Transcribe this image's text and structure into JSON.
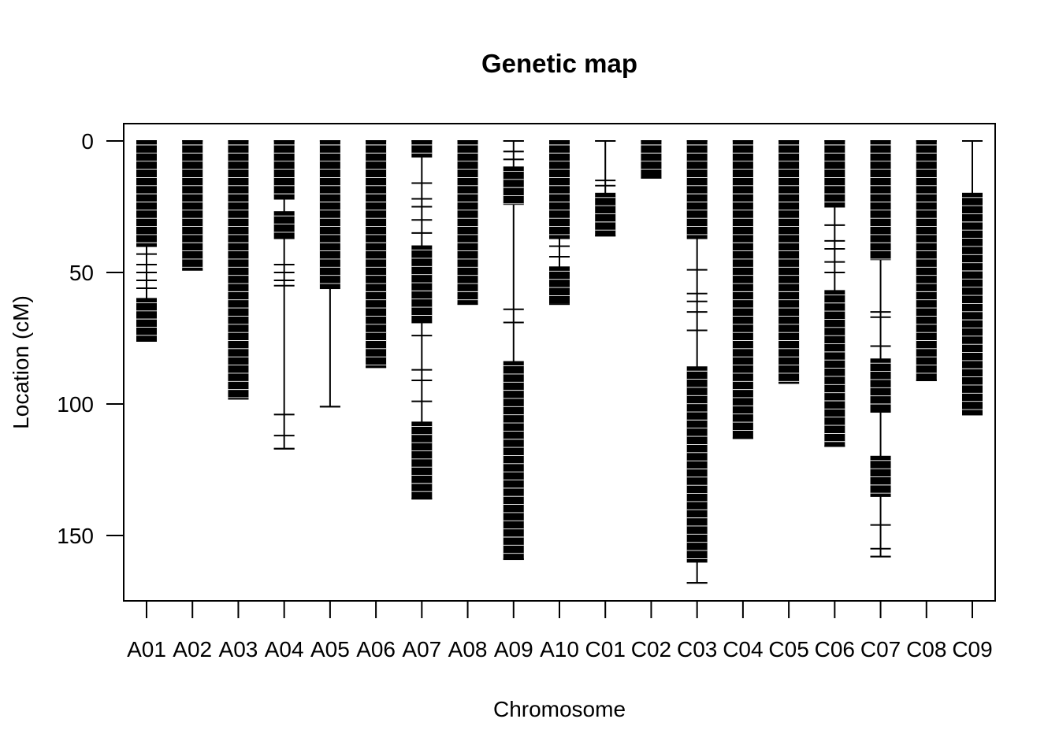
{
  "chart_data": {
    "type": "genetic_map",
    "title": "Genetic map",
    "xlabel": "Chromosome",
    "ylabel": "Location (cM)",
    "ylim": [
      175,
      -5
    ],
    "y_reversed": true,
    "yticks": [
      0,
      50,
      100,
      150
    ],
    "yticklabels": [
      "0",
      "50",
      "100",
      "150"
    ],
    "categories": [
      "A01",
      "A02",
      "A03",
      "A04",
      "A05",
      "A06",
      "A07",
      "A08",
      "A09",
      "A10",
      "C01",
      "C02",
      "C03",
      "C04",
      "C05",
      "C06",
      "C07",
      "C08",
      "C09"
    ],
    "chromosomes": [
      {
        "name": "A01",
        "length": 76,
        "dense_regions": [
          [
            0,
            40
          ],
          [
            60,
            76
          ]
        ],
        "sparse_markers": [
          2,
          5,
          43,
          47,
          50,
          53,
          56
        ]
      },
      {
        "name": "A02",
        "length": 49,
        "dense_regions": [
          [
            0,
            49
          ]
        ],
        "sparse_markers": []
      },
      {
        "name": "A03",
        "length": 98,
        "dense_regions": [
          [
            0,
            98
          ]
        ],
        "sparse_markers": []
      },
      {
        "name": "A04",
        "length": 117,
        "dense_regions": [
          [
            0,
            22
          ],
          [
            27,
            37
          ]
        ],
        "sparse_markers": [
          47,
          50,
          53,
          55,
          104,
          112,
          117
        ]
      },
      {
        "name": "A05",
        "length": 101,
        "dense_regions": [
          [
            0,
            56
          ]
        ],
        "sparse_markers": [
          101
        ]
      },
      {
        "name": "A06",
        "length": 86,
        "dense_regions": [
          [
            0,
            86
          ]
        ],
        "sparse_markers": []
      },
      {
        "name": "A07",
        "length": 136,
        "dense_regions": [
          [
            0,
            6
          ],
          [
            40,
            69
          ],
          [
            107,
            136
          ]
        ],
        "sparse_markers": [
          16,
          22,
          25,
          30,
          35,
          74,
          87,
          91,
          99
        ]
      },
      {
        "name": "A08",
        "length": 62,
        "dense_regions": [
          [
            0,
            62
          ]
        ],
        "sparse_markers": []
      },
      {
        "name": "A09",
        "length": 159,
        "dense_regions": [
          [
            10,
            24
          ],
          [
            84,
            159
          ]
        ],
        "sparse_markers": [
          0,
          4,
          7,
          64,
          69
        ]
      },
      {
        "name": "A10",
        "length": 62,
        "dense_regions": [
          [
            0,
            37
          ],
          [
            48,
            62
          ]
        ],
        "sparse_markers": [
          40,
          44
        ]
      },
      {
        "name": "C01",
        "length": 36,
        "dense_regions": [
          [
            20,
            36
          ]
        ],
        "sparse_markers": [
          0,
          15,
          17
        ]
      },
      {
        "name": "C02",
        "length": 14,
        "dense_regions": [
          [
            0,
            14
          ]
        ],
        "sparse_markers": []
      },
      {
        "name": "C03",
        "length": 168,
        "dense_regions": [
          [
            0,
            37
          ],
          [
            86,
            160
          ]
        ],
        "sparse_markers": [
          49,
          58,
          61,
          65,
          72,
          168
        ]
      },
      {
        "name": "C04",
        "length": 113,
        "dense_regions": [
          [
            0,
            113
          ]
        ],
        "sparse_markers": []
      },
      {
        "name": "C05",
        "length": 92,
        "dense_regions": [
          [
            0,
            92
          ]
        ],
        "sparse_markers": []
      },
      {
        "name": "C06",
        "length": 116,
        "dense_regions": [
          [
            0,
            25
          ],
          [
            57,
            116
          ]
        ],
        "sparse_markers": [
          32,
          38,
          41,
          46,
          50
        ]
      },
      {
        "name": "C07",
        "length": 158,
        "dense_regions": [
          [
            0,
            45
          ],
          [
            83,
            103
          ],
          [
            120,
            135
          ]
        ],
        "sparse_markers": [
          65,
          67,
          78,
          146,
          155,
          158
        ]
      },
      {
        "name": "C08",
        "length": 91,
        "dense_regions": [
          [
            0,
            91
          ]
        ],
        "sparse_markers": []
      },
      {
        "name": "C09",
        "length": 104,
        "dense_regions": [
          [
            20,
            104
          ]
        ],
        "sparse_markers": [
          0
        ]
      }
    ]
  }
}
